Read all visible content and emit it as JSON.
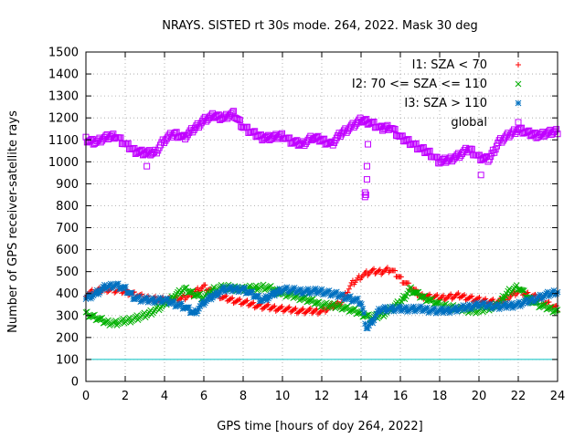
{
  "chart_data": {
    "type": "scatter",
    "title": "NRAYS. SISTED rt 30s mode. 264, 2022. Mask 30 deg",
    "xlabel": "GPS time [hours of doy 264, 2022]",
    "ylabel": "Number of GPS receiver-satellite rays",
    "xlim": [
      0,
      24
    ],
    "ylim": [
      0,
      1500
    ],
    "xticks": [
      0,
      2,
      4,
      6,
      8,
      10,
      12,
      14,
      16,
      18,
      20,
      22,
      24
    ],
    "yticks": [
      0,
      100,
      200,
      300,
      400,
      500,
      600,
      700,
      800,
      900,
      1000,
      1100,
      1200,
      1300,
      1400,
      1500
    ],
    "grid": true,
    "legend_position": "top-right",
    "reference_line": {
      "y": 100,
      "color": "#00c0c0"
    },
    "series": [
      {
        "name": "I1: SZA < 70",
        "marker": "+",
        "color": "#ff0000",
        "x": [
          0,
          1,
          2,
          3,
          4,
          5,
          6,
          7,
          8,
          9,
          10,
          11,
          12,
          13,
          13.5,
          14,
          14.5,
          15,
          15.5,
          16,
          17,
          18,
          19,
          20,
          21,
          22,
          23,
          24
        ],
        "y": [
          400,
          420,
          410,
          380,
          370,
          380,
          430,
          380,
          360,
          340,
          330,
          320,
          320,
          360,
          440,
          480,
          500,
          500,
          510,
          470,
          390,
          380,
          390,
          370,
          360,
          410,
          380,
          330
        ]
      },
      {
        "name": "I2: 70 <= SZA <= 110",
        "marker": "x",
        "color": "#00b000",
        "x": [
          0,
          0.5,
          1,
          1.5,
          2,
          3,
          4,
          4.5,
          5,
          5.5,
          6,
          6.5,
          7,
          8,
          9,
          9.5,
          10,
          11,
          12,
          13,
          14,
          14.5,
          15,
          16,
          16.5,
          17,
          18,
          19,
          20,
          21,
          21.5,
          22,
          22.5,
          23,
          24
        ],
        "y": [
          310,
          290,
          270,
          265,
          275,
          300,
          350,
          390,
          420,
          400,
          380,
          420,
          430,
          420,
          430,
          420,
          400,
          380,
          350,
          340,
          310,
          290,
          300,
          360,
          420,
          390,
          350,
          330,
          320,
          350,
          410,
          430,
          380,
          350,
          320
        ]
      },
      {
        "name": "I3: SZA > 110",
        "marker": "*",
        "color": "#0070c0",
        "x": [
          0,
          0.5,
          1,
          1.5,
          2,
          2.5,
          3,
          4,
          5,
          5.5,
          6,
          7,
          8,
          9,
          10,
          11,
          12,
          13,
          14,
          14.3,
          15,
          16,
          17,
          18,
          19,
          20,
          21,
          22,
          23,
          24
        ],
        "y": [
          380,
          400,
          430,
          440,
          420,
          380,
          370,
          370,
          340,
          310,
          360,
          420,
          420,
          370,
          420,
          410,
          410,
          390,
          360,
          240,
          330,
          330,
          330,
          320,
          330,
          350,
          340,
          350,
          380,
          410
        ]
      },
      {
        "name": "global",
        "marker": "square",
        "color": "#c000ff",
        "x": [
          0,
          0.5,
          1,
          1.5,
          2,
          2.5,
          3,
          3.5,
          4,
          4.5,
          5,
          5.5,
          6,
          6.5,
          7,
          7.5,
          8,
          8.5,
          9,
          9.5,
          10,
          10.5,
          11,
          11.5,
          12,
          12.5,
          13,
          13.5,
          14,
          14.5,
          15,
          15.5,
          16,
          16.5,
          17,
          17.5,
          18,
          18.5,
          19,
          19.5,
          20,
          20.5,
          21,
          21.5,
          22,
          22.5,
          23,
          23.5,
          24
        ],
        "y": [
          1100,
          1090,
          1110,
          1120,
          1080,
          1050,
          1040,
          1040,
          1100,
          1130,
          1110,
          1150,
          1190,
          1210,
          1200,
          1220,
          1160,
          1130,
          1110,
          1110,
          1120,
          1090,
          1080,
          1110,
          1100,
          1080,
          1130,
          1160,
          1190,
          1180,
          1150,
          1160,
          1110,
          1090,
          1060,
          1040,
          1000,
          1010,
          1030,
          1060,
          1020,
          1010,
          1090,
          1120,
          1150,
          1130,
          1120,
          1130,
          1140
        ]
      }
    ],
    "outliers": {
      "global": {
        "x": [
          3.1,
          14.2,
          14.2,
          14.25,
          14.3,
          14.3,
          14.35,
          20.1
        ],
        "y": [
          980,
          840,
          860,
          850,
          920,
          980,
          1080,
          940
        ]
      }
    }
  }
}
